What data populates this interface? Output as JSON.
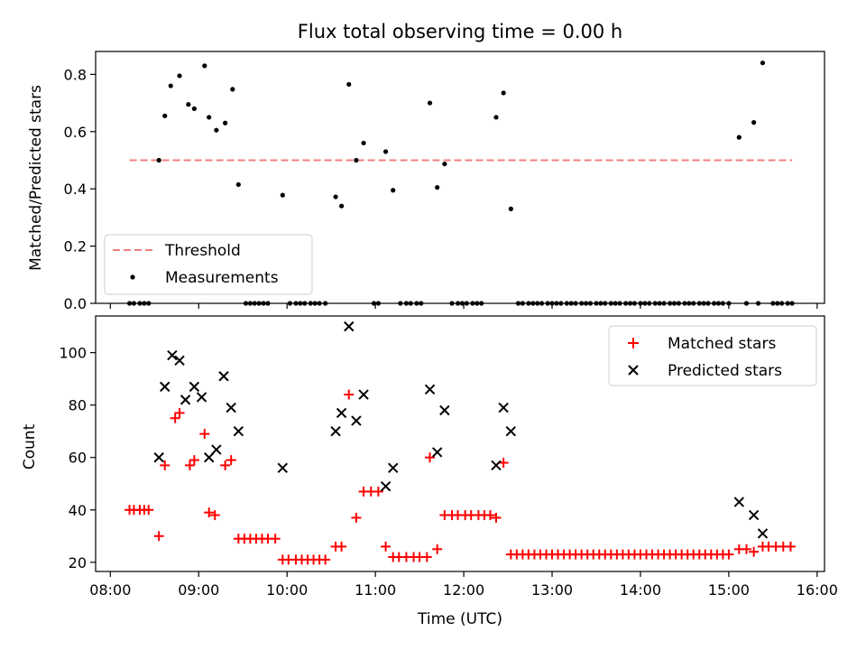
{
  "chart_data": [
    {
      "type": "scatter",
      "title": "Flux total observing time = 0.00 h",
      "ylabel": "Matched/Predicted stars",
      "ylim": [
        0,
        0.88
      ],
      "yticks": [
        "0.0",
        "0.2",
        "0.4",
        "0.6",
        "0.8"
      ],
      "yticks_values": [
        0,
        0.2,
        0.4,
        0.6,
        0.8
      ],
      "legend_position": "lower-left",
      "threshold": {
        "name": "Threshold",
        "value": 0.5,
        "x_range": [
          "08:13",
          "15:43"
        ],
        "color": "#f08080"
      },
      "series": [
        {
          "name": "Measurements",
          "color": "#000000",
          "points": [
            [
              "08:13",
              0
            ],
            [
              "08:16",
              0
            ],
            [
              "08:20",
              0
            ],
            [
              "08:23",
              0
            ],
            [
              "08:26",
              0
            ],
            [
              "08:33",
              0.5
            ],
            [
              "08:37",
              0.655
            ],
            [
              "08:41",
              0.76
            ],
            [
              "08:47",
              0.795
            ],
            [
              "08:53",
              0.695
            ],
            [
              "08:57",
              0.68
            ],
            [
              "09:04",
              0.83
            ],
            [
              "09:07",
              0.65
            ],
            [
              "09:12",
              0.605
            ],
            [
              "09:18",
              0.63
            ],
            [
              "09:23",
              0.748
            ],
            [
              "09:27",
              0.415
            ],
            [
              "09:32",
              0
            ],
            [
              "09:35",
              0
            ],
            [
              "09:38",
              0
            ],
            [
              "09:41",
              0
            ],
            [
              "09:44",
              0
            ],
            [
              "09:47",
              0
            ],
            [
              "09:57",
              0.378
            ],
            [
              "10:02",
              0
            ],
            [
              "10:06",
              0
            ],
            [
              "10:09",
              0
            ],
            [
              "10:12",
              0
            ],
            [
              "10:16",
              0
            ],
            [
              "10:19",
              0
            ],
            [
              "10:22",
              0
            ],
            [
              "10:26",
              0
            ],
            [
              "10:33",
              0.372
            ],
            [
              "10:37",
              0.34
            ],
            [
              "10:42",
              0.765
            ],
            [
              "10:47",
              0.5
            ],
            [
              "10:52",
              0.56
            ],
            [
              "10:59",
              0
            ],
            [
              "11:02",
              0
            ],
            [
              "11:07",
              0.53
            ],
            [
              "11:12",
              0.395
            ],
            [
              "11:17",
              0
            ],
            [
              "11:21",
              0
            ],
            [
              "11:24",
              0
            ],
            [
              "11:28",
              0
            ],
            [
              "11:31",
              0
            ],
            [
              "11:37",
              0.7
            ],
            [
              "11:42",
              0.405
            ],
            [
              "11:47",
              0.487
            ],
            [
              "11:52",
              0
            ],
            [
              "11:56",
              0
            ],
            [
              "11:59",
              0
            ],
            [
              "12:02",
              0
            ],
            [
              "12:06",
              0
            ],
            [
              "12:09",
              0
            ],
            [
              "12:12",
              0
            ],
            [
              "12:22",
              0.65
            ],
            [
              "12:27",
              0.735
            ],
            [
              "12:32",
              0.33
            ],
            [
              "12:37",
              0
            ],
            [
              "12:40",
              0
            ],
            [
              "12:44",
              0
            ],
            [
              "12:47",
              0
            ],
            [
              "12:50",
              0
            ],
            [
              "12:53",
              0
            ],
            [
              "12:57",
              0
            ],
            [
              "13:00",
              0
            ],
            [
              "13:03",
              0
            ],
            [
              "13:06",
              0
            ],
            [
              "13:10",
              0
            ],
            [
              "13:13",
              0
            ],
            [
              "13:16",
              0
            ],
            [
              "13:20",
              0
            ],
            [
              "13:23",
              0
            ],
            [
              "13:26",
              0
            ],
            [
              "13:30",
              0
            ],
            [
              "13:33",
              0
            ],
            [
              "13:36",
              0
            ],
            [
              "13:40",
              0
            ],
            [
              "13:43",
              0
            ],
            [
              "13:46",
              0
            ],
            [
              "13:50",
              0
            ],
            [
              "13:53",
              0
            ],
            [
              "13:56",
              0
            ],
            [
              "14:00",
              0
            ],
            [
              "14:03",
              0
            ],
            [
              "14:06",
              0
            ],
            [
              "14:10",
              0
            ],
            [
              "14:13",
              0
            ],
            [
              "14:16",
              0
            ],
            [
              "14:20",
              0
            ],
            [
              "14:23",
              0
            ],
            [
              "14:26",
              0
            ],
            [
              "14:30",
              0
            ],
            [
              "14:33",
              0
            ],
            [
              "14:36",
              0
            ],
            [
              "14:40",
              0
            ],
            [
              "14:43",
              0
            ],
            [
              "14:46",
              0
            ],
            [
              "14:50",
              0
            ],
            [
              "14:53",
              0
            ],
            [
              "14:56",
              0
            ],
            [
              "15:00",
              0
            ],
            [
              "15:07",
              0.58
            ],
            [
              "15:12",
              0
            ],
            [
              "15:17",
              0.632
            ],
            [
              "15:20",
              0
            ],
            [
              "15:23",
              0.84
            ],
            [
              "15:30",
              0
            ],
            [
              "15:33",
              0
            ],
            [
              "15:36",
              0
            ],
            [
              "15:40",
              0
            ],
            [
              "15:43",
              0
            ]
          ]
        }
      ]
    },
    {
      "type": "scatter",
      "xlabel": "Time (UTC)",
      "ylabel": "Count",
      "xlim": [
        "07:50",
        "16:05"
      ],
      "xticks": [
        "08:00",
        "09:00",
        "10:00",
        "11:00",
        "12:00",
        "13:00",
        "14:00",
        "15:00",
        "16:00"
      ],
      "ylim": [
        16.5,
        114
      ],
      "yticks": [
        "20",
        "40",
        "60",
        "80",
        "100"
      ],
      "yticks_values": [
        20,
        40,
        60,
        80,
        100
      ],
      "legend_position": "top-right",
      "series": [
        {
          "name": "Matched stars",
          "marker": "+",
          "color": "#ff0000",
          "points": [
            [
              "08:13",
              40
            ],
            [
              "08:16",
              40
            ],
            [
              "08:20",
              40
            ],
            [
              "08:23",
              40
            ],
            [
              "08:26",
              40
            ],
            [
              "08:33",
              30
            ],
            [
              "08:37",
              57
            ],
            [
              "08:44",
              75
            ],
            [
              "08:47",
              77
            ],
            [
              "08:54",
              57
            ],
            [
              "08:57",
              59
            ],
            [
              "09:04",
              69
            ],
            [
              "09:07",
              39
            ],
            [
              "09:11",
              38
            ],
            [
              "09:18",
              57
            ],
            [
              "09:22",
              59
            ],
            [
              "09:27",
              29
            ],
            [
              "09:31",
              29
            ],
            [
              "09:35",
              29
            ],
            [
              "09:39",
              29
            ],
            [
              "09:43",
              29
            ],
            [
              "09:47",
              29
            ],
            [
              "09:52",
              29
            ],
            [
              "09:57",
              21
            ],
            [
              "10:01",
              21
            ],
            [
              "10:06",
              21
            ],
            [
              "10:10",
              21
            ],
            [
              "10:14",
              21
            ],
            [
              "10:18",
              21
            ],
            [
              "10:22",
              21
            ],
            [
              "10:26",
              21
            ],
            [
              "10:33",
              26
            ],
            [
              "10:37",
              26
            ],
            [
              "10:42",
              84
            ],
            [
              "10:47",
              37
            ],
            [
              "10:52",
              47
            ],
            [
              "10:57",
              47
            ],
            [
              "11:02",
              47
            ],
            [
              "11:07",
              26
            ],
            [
              "11:12",
              22
            ],
            [
              "11:16",
              22
            ],
            [
              "11:21",
              22
            ],
            [
              "11:26",
              22
            ],
            [
              "11:30",
              22
            ],
            [
              "11:35",
              22
            ],
            [
              "11:37",
              60
            ],
            [
              "11:42",
              25
            ],
            [
              "11:47",
              38
            ],
            [
              "11:52",
              38
            ],
            [
              "11:56",
              38
            ],
            [
              "12:01",
              38
            ],
            [
              "12:05",
              38
            ],
            [
              "12:10",
              38
            ],
            [
              "12:14",
              38
            ],
            [
              "12:18",
              38
            ],
            [
              "12:22",
              37
            ],
            [
              "12:27",
              58
            ],
            [
              "12:32",
              23
            ],
            [
              "12:36",
              23
            ],
            [
              "12:40",
              23
            ],
            [
              "12:44",
              23
            ],
            [
              "12:48",
              23
            ],
            [
              "12:52",
              23
            ],
            [
              "12:56",
              23
            ],
            [
              "13:00",
              23
            ],
            [
              "13:04",
              23
            ],
            [
              "13:08",
              23
            ],
            [
              "13:12",
              23
            ],
            [
              "13:16",
              23
            ],
            [
              "13:20",
              23
            ],
            [
              "13:24",
              23
            ],
            [
              "13:28",
              23
            ],
            [
              "13:32",
              23
            ],
            [
              "13:36",
              23
            ],
            [
              "13:40",
              23
            ],
            [
              "13:44",
              23
            ],
            [
              "13:48",
              23
            ],
            [
              "13:52",
              23
            ],
            [
              "13:56",
              23
            ],
            [
              "14:00",
              23
            ],
            [
              "14:04",
              23
            ],
            [
              "14:08",
              23
            ],
            [
              "14:12",
              23
            ],
            [
              "14:16",
              23
            ],
            [
              "14:20",
              23
            ],
            [
              "14:24",
              23
            ],
            [
              "14:28",
              23
            ],
            [
              "14:32",
              23
            ],
            [
              "14:36",
              23
            ],
            [
              "14:40",
              23
            ],
            [
              "14:44",
              23
            ],
            [
              "14:48",
              23
            ],
            [
              "14:52",
              23
            ],
            [
              "14:56",
              23
            ],
            [
              "15:00",
              23
            ],
            [
              "15:07",
              25
            ],
            [
              "15:12",
              25
            ],
            [
              "15:17",
              24
            ],
            [
              "15:23",
              26
            ],
            [
              "15:27",
              26
            ],
            [
              "15:32",
              26
            ],
            [
              "15:37",
              26
            ],
            [
              "15:42",
              26
            ]
          ]
        },
        {
          "name": "Predicted stars",
          "marker": "x",
          "color": "#000000",
          "points": [
            [
              "08:33",
              60
            ],
            [
              "08:37",
              87
            ],
            [
              "08:42",
              99
            ],
            [
              "08:47",
              97
            ],
            [
              "08:51",
              82
            ],
            [
              "08:57",
              87
            ],
            [
              "09:02",
              83
            ],
            [
              "09:07",
              60
            ],
            [
              "09:12",
              63
            ],
            [
              "09:17",
              91
            ],
            [
              "09:22",
              79
            ],
            [
              "09:27",
              70
            ],
            [
              "09:57",
              56
            ],
            [
              "10:33",
              70
            ],
            [
              "10:37",
              77
            ],
            [
              "10:42",
              110
            ],
            [
              "10:47",
              74
            ],
            [
              "10:52",
              84
            ],
            [
              "11:07",
              49
            ],
            [
              "11:12",
              56
            ],
            [
              "11:37",
              86
            ],
            [
              "11:42",
              62
            ],
            [
              "11:47",
              78
            ],
            [
              "12:22",
              57
            ],
            [
              "12:27",
              79
            ],
            [
              "12:32",
              70
            ],
            [
              "15:07",
              43
            ],
            [
              "15:17",
              38
            ],
            [
              "15:23",
              31
            ]
          ]
        }
      ]
    }
  ]
}
